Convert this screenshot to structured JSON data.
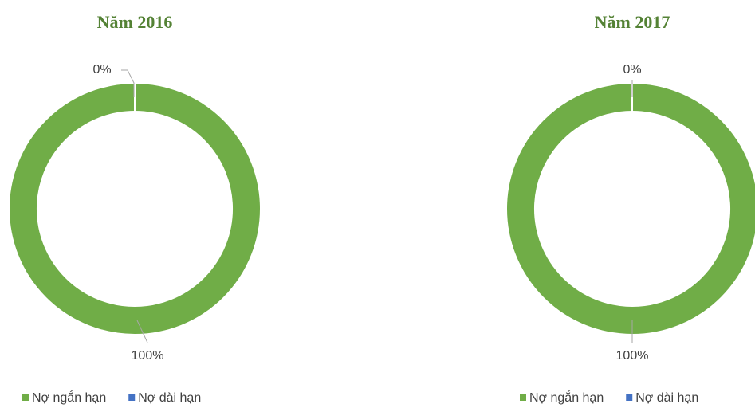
{
  "chart_data": [
    {
      "type": "donut",
      "title": "Năm 2016",
      "categories": [
        "Nợ ngắn hạn",
        "Nợ dài hạn"
      ],
      "values": [
        100,
        0
      ],
      "value_labels": [
        "100%",
        "0%"
      ],
      "colors": [
        "#70ad47",
        "#4472c4"
      ],
      "legend": "bottom"
    },
    {
      "type": "donut",
      "title": "Năm 2017",
      "categories": [
        "Nợ ngắn hạn",
        "Nợ dài hạn"
      ],
      "values": [
        100,
        0
      ],
      "value_labels": [
        "100%",
        "0%"
      ],
      "colors": [
        "#70ad47",
        "#4472c4"
      ],
      "legend": "bottom"
    }
  ]
}
